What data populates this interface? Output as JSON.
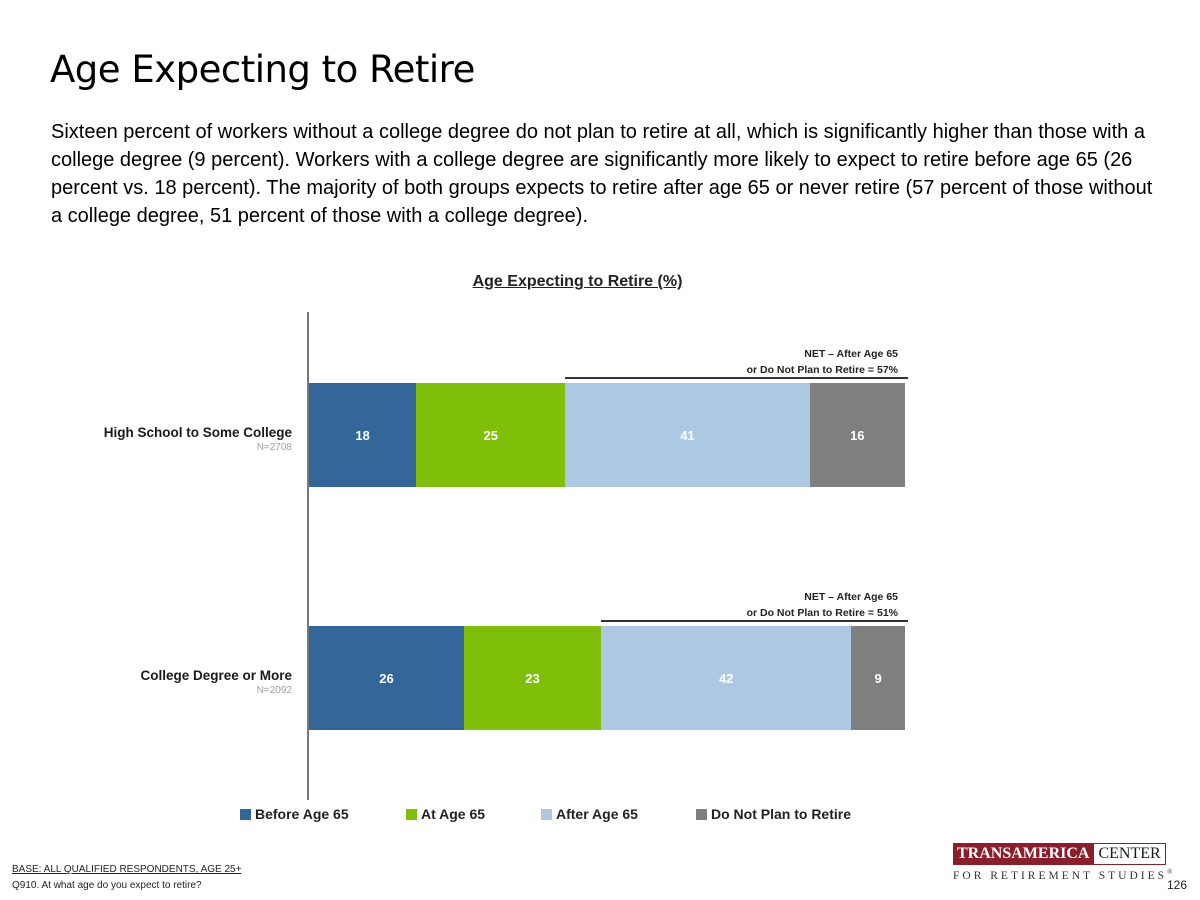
{
  "page": {
    "title": "Age Expecting to Retire",
    "description": "Sixteen percent of workers without a college degree do not plan to retire at all, which is significantly higher than those with a college degree (9 percent). Workers with a college degree are significantly more likely to expect to retire before age 65 (26 percent vs. 18 percent). The majority of both groups expects to retire after age 65 or never retire (57 percent of those without a college degree, 51 percent of those with a college degree).",
    "base_note": "BASE: ALL QUALIFIED RESPONDENTS, AGE 25+",
    "question_note": "Q910. At what age do you expect to retire?",
    "page_number": "126"
  },
  "logo": {
    "left_text": "TRANSAMERICA",
    "right_text": "CENTER",
    "sub_text": "FOR RETIREMENT STUDIES",
    "mark": "®",
    "colors": {
      "brand": "#8b1e2b"
    }
  },
  "chart_data": {
    "type": "bar",
    "orientation": "horizontal",
    "stacked": true,
    "title": "Age Expecting to Retire (%)",
    "categories": [
      "High School to Some College",
      "College Degree or More"
    ],
    "category_notes": [
      "N=2708",
      "N=2092"
    ],
    "series": [
      {
        "name": "Before Age 65",
        "color": "#336699",
        "values": [
          18,
          26
        ]
      },
      {
        "name": "At Age 65",
        "color": "#7fbf0a",
        "values": [
          25,
          23
        ]
      },
      {
        "name": "After Age 65",
        "color": "#adc8e2",
        "values": [
          41,
          42
        ]
      },
      {
        "name": "Do Not Plan to Retire",
        "color": "#7f7f7f",
        "values": [
          16,
          9
        ]
      }
    ],
    "annotations": [
      {
        "line1": "NET – After Age 65",
        "line2": "or Do Not Plan to Retire = 57%",
        "value": 57
      },
      {
        "line1": "NET – After Age 65",
        "line2": "or Do Not Plan to Retire = 51%",
        "value": 51
      }
    ],
    "xlim": [
      0,
      100
    ],
    "legend_position": "bottom",
    "grid": false
  }
}
